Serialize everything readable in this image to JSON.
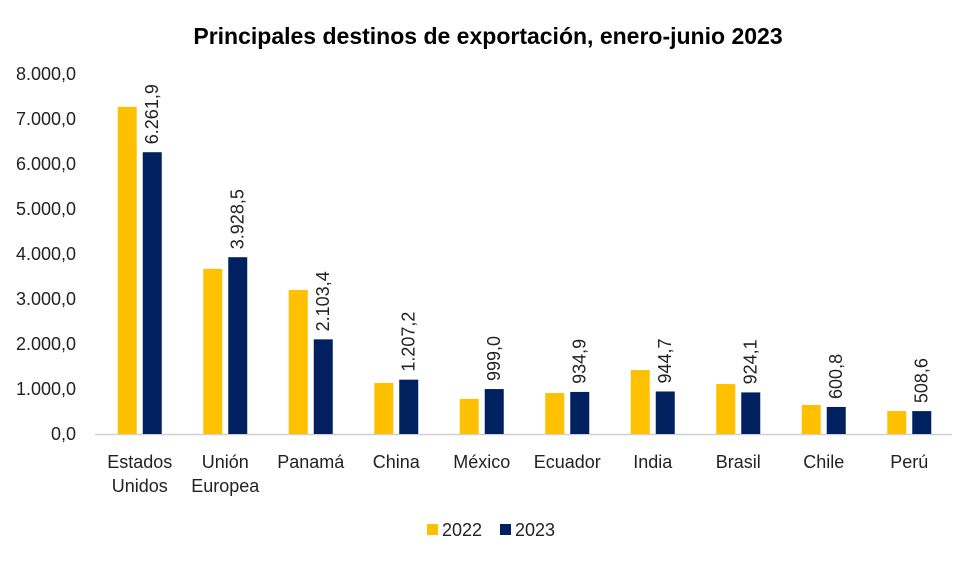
{
  "chart_data": {
    "type": "bar",
    "title": "Principales destinos de exportación, enero-junio 2023",
    "xlabel": "",
    "ylabel": "",
    "ylim": [
      0,
      8000
    ],
    "yticks": [
      0,
      1000,
      2000,
      3000,
      4000,
      5000,
      6000,
      7000,
      8000
    ],
    "ytick_labels": [
      "0,0",
      "1.000,0",
      "2.000,0",
      "3.000,0",
      "4.000,0",
      "5.000,0",
      "6.000,0",
      "7.000,0",
      "8.000,0"
    ],
    "grid": false,
    "legend_position": "bottom",
    "categories": [
      [
        "Estados",
        "Unidos"
      ],
      [
        "Unión",
        "Europea"
      ],
      [
        "Panamá"
      ],
      [
        "China"
      ],
      [
        "México"
      ],
      [
        "Ecuador"
      ],
      [
        "India"
      ],
      [
        "Brasil"
      ],
      [
        "Chile"
      ],
      [
        "Perú"
      ]
    ],
    "series": [
      {
        "name": "2022",
        "color": "#FFC000",
        "values": [
          7270,
          3670,
          3200,
          1135,
          780,
          910,
          1420,
          1110,
          645,
          510
        ]
      },
      {
        "name": "2023",
        "color": "#002060",
        "values": [
          6261.9,
          3928.5,
          2103.4,
          1207.2,
          999.0,
          934.9,
          944.7,
          924.1,
          600.8,
          508.6
        ],
        "data_labels": [
          "6.261,9",
          "3.928,5",
          "2.103,4",
          "1.207,2",
          "999,0",
          "934,9",
          "944,7",
          "924,1",
          "600,8",
          "508,6"
        ]
      }
    ]
  }
}
